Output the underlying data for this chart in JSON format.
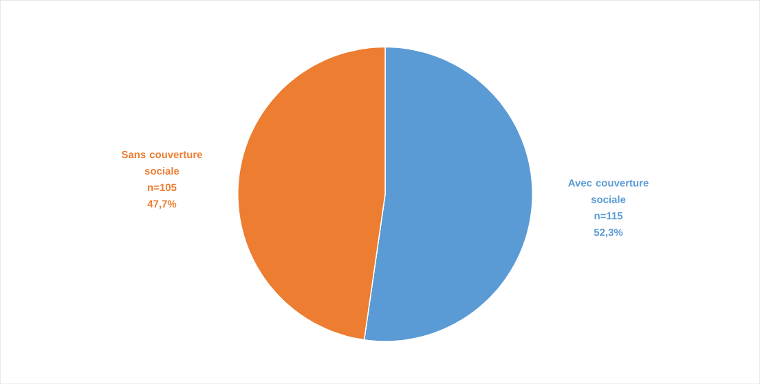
{
  "chart_data": {
    "type": "pie",
    "categories": [
      "Avec couverture sociale",
      "Sans couverture sociale"
    ],
    "values": [
      115,
      105
    ],
    "colors": [
      "#5b9bd5",
      "#ed7d31"
    ],
    "value_labels": [
      "n=115",
      "n=105"
    ],
    "annotations": [
      "52,3%",
      "47,7%"
    ]
  }
}
